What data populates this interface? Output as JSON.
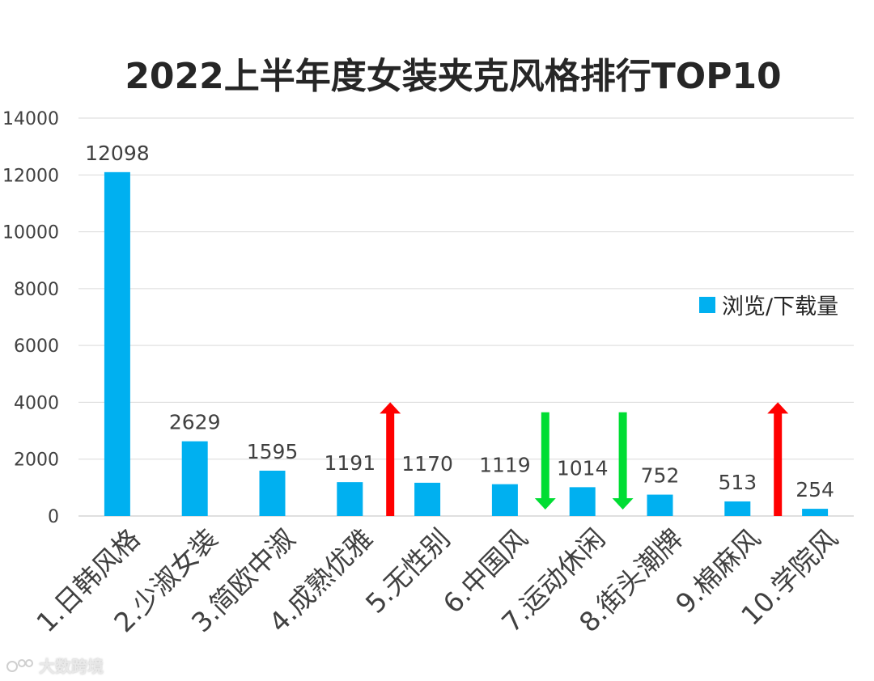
{
  "chart_data": {
    "type": "bar",
    "title": "2022上半年度女装夹克风格排行TOP10",
    "categories": [
      "1.日韩风格",
      "2.少淑女装",
      "3.简欧中淑",
      "4.成熟优雅",
      "5.无性别",
      "6.中国风",
      "7.运动休闲",
      "8.街头潮牌",
      "9.棉麻风",
      "10.学院风"
    ],
    "series": [
      {
        "name": "浏览/下载量",
        "values": [
          12098,
          2629,
          1595,
          1191,
          1170,
          1119,
          1014,
          752,
          513,
          254
        ]
      }
    ],
    "ylim": [
      0,
      14000
    ],
    "yticks": [
      0,
      2000,
      4000,
      6000,
      8000,
      10000,
      12000,
      14000
    ],
    "xlabel": "",
    "ylabel": "",
    "grid": true,
    "legend_position": "right",
    "bar_color": "#00b0f0",
    "trend_arrows": [
      {
        "category": "5.无性别",
        "direction": "up",
        "color": "#ff0000"
      },
      {
        "category": "7.运动休闲",
        "direction": "down",
        "color": "#00dd33"
      },
      {
        "category": "8.街头潮牌",
        "direction": "down",
        "color": "#00dd33"
      },
      {
        "category": "10.学院风",
        "direction": "up",
        "color": "#ff0000"
      }
    ]
  },
  "watermark": "大数跨境"
}
